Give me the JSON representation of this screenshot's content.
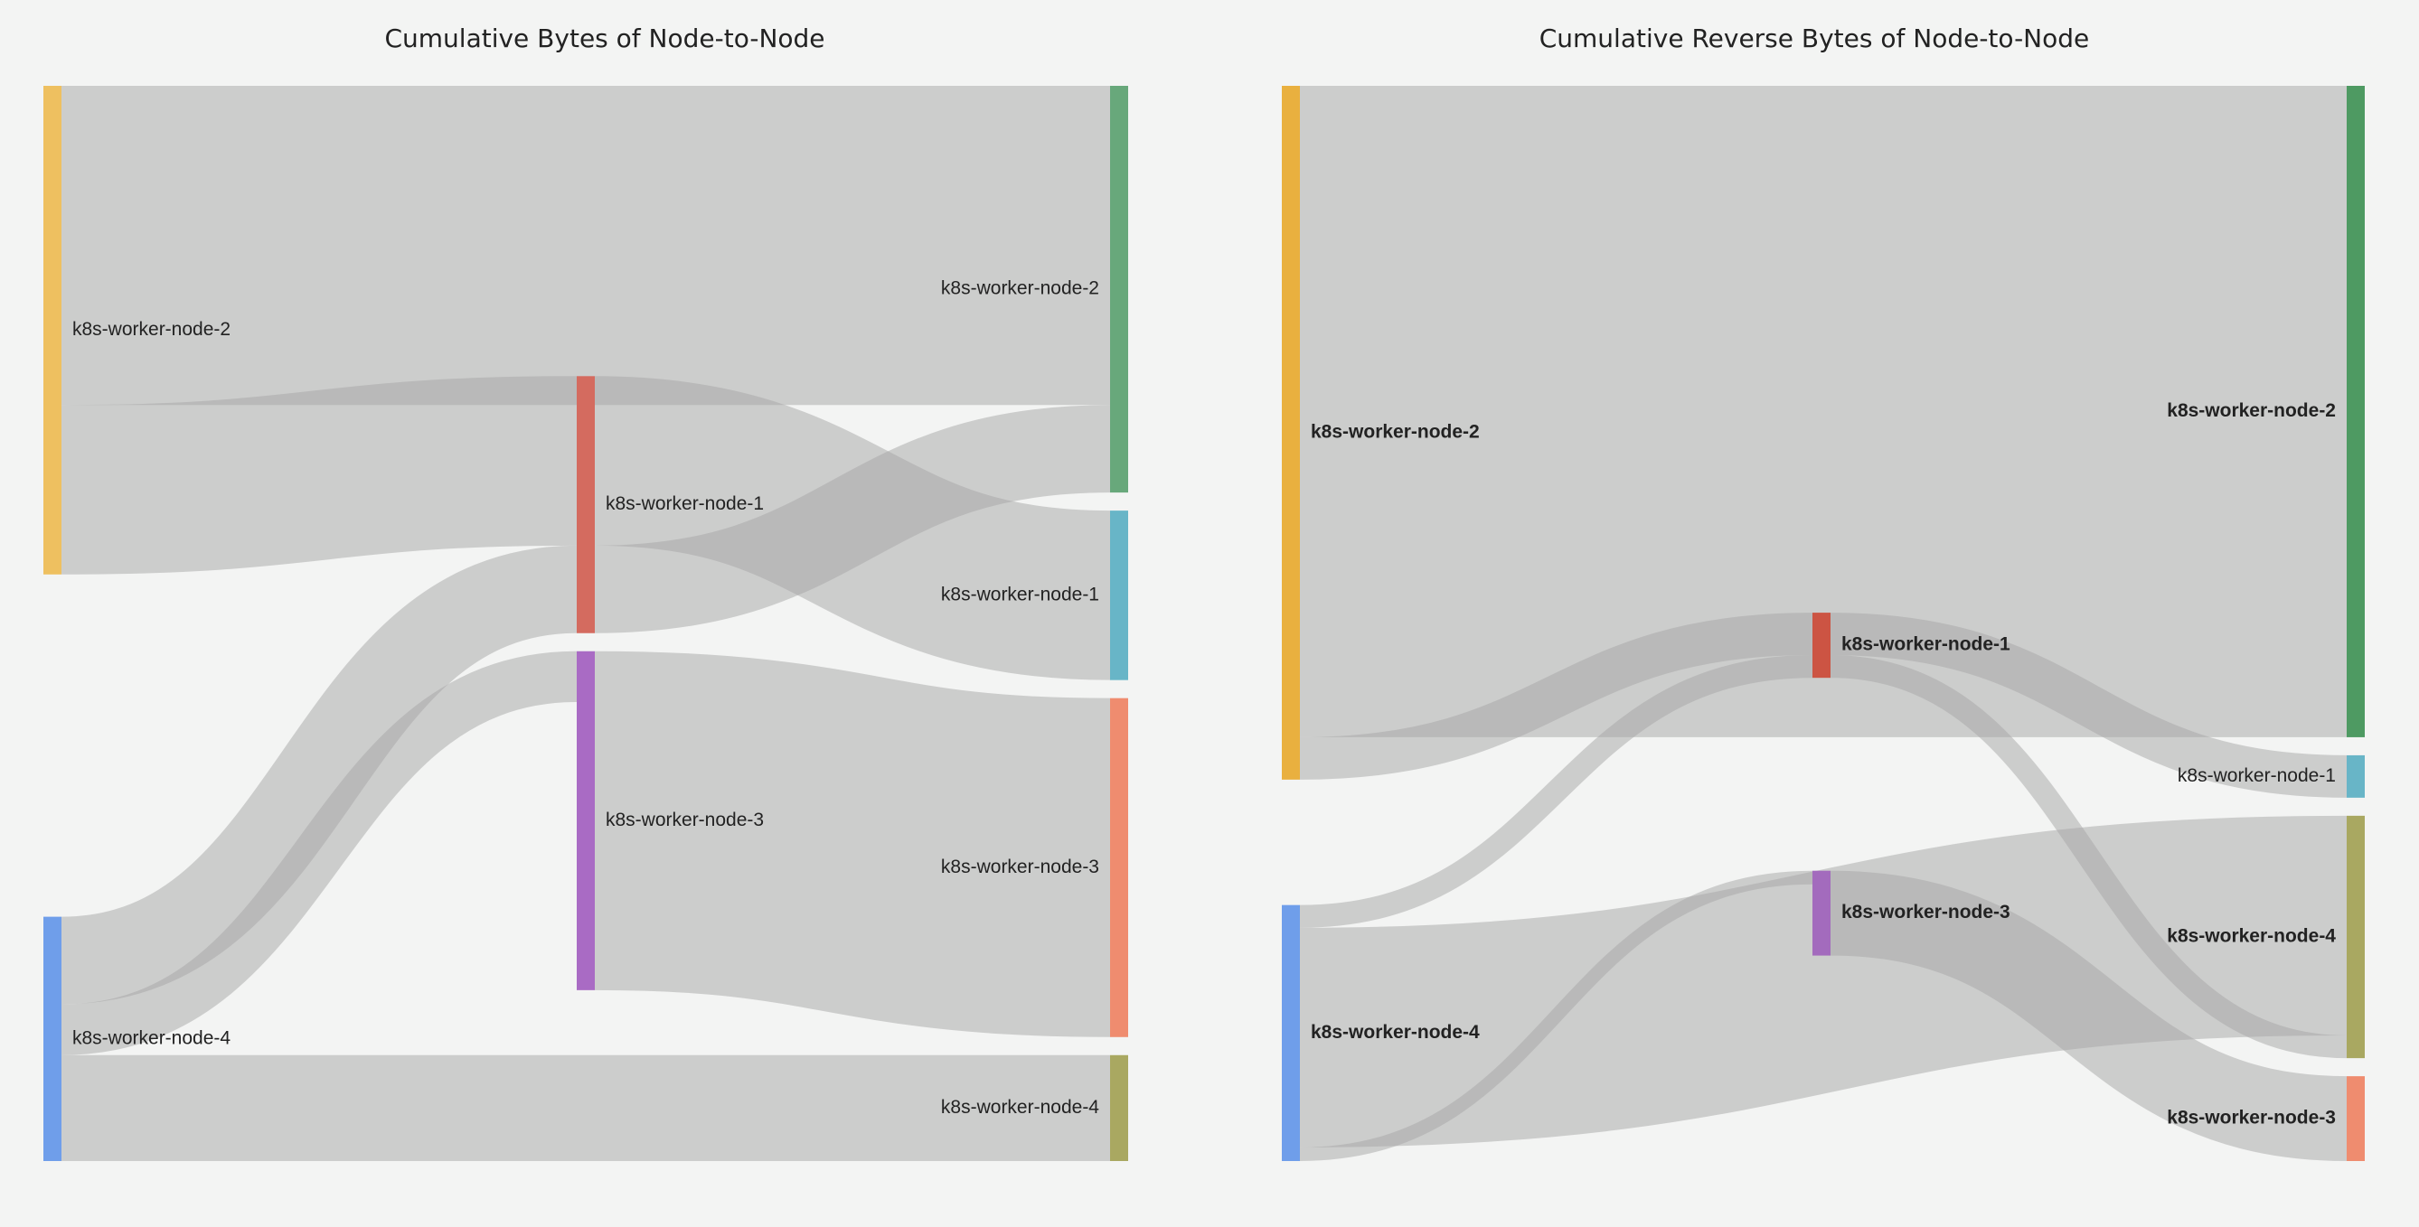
{
  "chart_data": [
    {
      "type": "sankey",
      "title": "Cumulative Bytes of Node-to-Node",
      "nodes": [
        {
          "id": "s2",
          "label": "k8s-worker-node-2",
          "color": "#eec060"
        },
        {
          "id": "s4",
          "label": "k8s-worker-node-4",
          "color": "#6f9eea"
        },
        {
          "id": "m1",
          "label": "k8s-worker-node-1",
          "color": "#d46b5f"
        },
        {
          "id": "m3",
          "label": "k8s-worker-node-3",
          "color": "#a96bc4"
        },
        {
          "id": "t2",
          "label": "k8s-worker-node-2",
          "color": "#68a87b"
        },
        {
          "id": "t1",
          "label": "k8s-worker-node-1",
          "color": "#68b5c7"
        },
        {
          "id": "t3",
          "label": "k8s-worker-node-3",
          "color": "#ef8c6f"
        },
        {
          "id": "t4",
          "label": "k8s-worker-node-4",
          "color": "#a9a861"
        }
      ],
      "links": [
        {
          "source": "s2",
          "target": "t2",
          "value": 22.6
        },
        {
          "source": "s2",
          "target": "m1",
          "value": 12.0
        },
        {
          "source": "s4",
          "target": "m1",
          "value": 6.2
        },
        {
          "source": "s4",
          "target": "m3",
          "value": 3.6
        },
        {
          "source": "s4",
          "target": "t4",
          "value": 7.5
        },
        {
          "source": "m1",
          "target": "t1",
          "value": 12.0
        },
        {
          "source": "m1",
          "target": "t2",
          "value": 6.2
        },
        {
          "source": "m3",
          "target": "t3",
          "value": 24.0
        }
      ]
    },
    {
      "type": "sankey",
      "title": "Cumulative Reverse Bytes of Node-to-Node",
      "nodes": [
        {
          "id": "s2",
          "label": "k8s-worker-node-2",
          "color": "#e9b03f"
        },
        {
          "id": "s4",
          "label": "k8s-worker-node-4",
          "color": "#6f9eea"
        },
        {
          "id": "m1",
          "label": "k8s-worker-node-1",
          "color": "#cc5443"
        },
        {
          "id": "m3",
          "label": "k8s-worker-node-3",
          "color": "#a36bbd"
        },
        {
          "id": "t2",
          "label": "k8s-worker-node-2",
          "color": "#4e9a62"
        },
        {
          "id": "t1",
          "label": "k8s-worker-node-1",
          "color": "#68b5c7"
        },
        {
          "id": "t4",
          "label": "k8s-worker-node-4",
          "color": "#a9a861"
        },
        {
          "id": "t3",
          "label": "k8s-worker-node-3",
          "color": "#ef8c6f"
        }
      ],
      "links": [
        {
          "source": "s2",
          "target": "t2",
          "value": 43.0
        },
        {
          "source": "s2",
          "target": "m1",
          "value": 2.8
        },
        {
          "source": "s4",
          "target": "m1",
          "value": 1.5
        },
        {
          "source": "s4",
          "target": "t4",
          "value": 14.5
        },
        {
          "source": "s4",
          "target": "m3",
          "value": 0.9
        },
        {
          "source": "m1",
          "target": "t1",
          "value": 2.8
        },
        {
          "source": "m1",
          "target": "t4",
          "value": 1.5
        },
        {
          "source": "m3",
          "target": "t3",
          "value": 5.6
        }
      ]
    }
  ]
}
